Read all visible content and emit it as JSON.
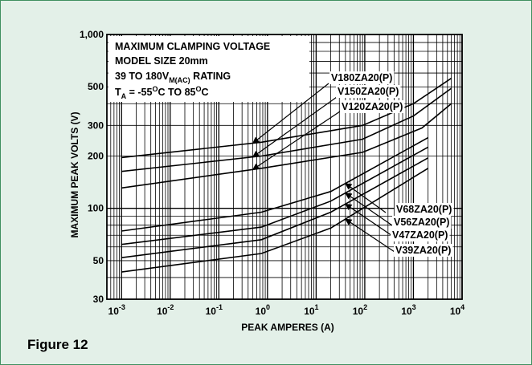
{
  "figure_caption": "Figure 12",
  "colors": {
    "background": "#e3f0e8",
    "border": "#3f8f5f",
    "ink": "#000000"
  },
  "chart_data": {
    "type": "line",
    "x_scale": "log",
    "y_scale": "log",
    "xlabel": "PEAK AMPERES (A)",
    "ylabel": "MAXIMUM PEAK VOLTS (V)",
    "xlim": [
      0.0005,
      10000
    ],
    "ylim": [
      30,
      1000
    ],
    "x_ticks": [
      {
        "value": 0.001,
        "base": "10",
        "exp": "-3"
      },
      {
        "value": 0.01,
        "base": "10",
        "exp": "-2"
      },
      {
        "value": 0.1,
        "base": "10",
        "exp": "-1"
      },
      {
        "value": 1,
        "base": "10",
        "exp": "0"
      },
      {
        "value": 10,
        "base": "10",
        "exp": "1"
      },
      {
        "value": 100,
        "base": "10",
        "exp": "2"
      },
      {
        "value": 1000,
        "base": "10",
        "exp": "3"
      },
      {
        "value": 10000,
        "base": "10",
        "exp": "4"
      }
    ],
    "y_ticks": [
      {
        "value": 30,
        "label": "30"
      },
      {
        "value": 50,
        "label": "50"
      },
      {
        "value": 100,
        "label": "100"
      },
      {
        "value": 200,
        "label": "200"
      },
      {
        "value": 300,
        "label": "300"
      },
      {
        "value": 500,
        "label": "500"
      },
      {
        "value": 1000,
        "label": "1,000"
      }
    ],
    "grid": true,
    "info_box": {
      "line1": "MAXIMUM CLAMPING VOLTAGE",
      "line2": "MODEL SIZE 20mm",
      "line3_prefix": "39 TO 180V",
      "line3_sub": "M(AC)",
      "line3_suffix": " RATING",
      "line4_T": "T",
      "line4_sub": "A",
      "line4_a": " = -55",
      "line4_o1": "O",
      "line4_b": "C TO 85",
      "line4_o2": "O",
      "line4_c": "C"
    },
    "series": [
      {
        "name": "V180ZA20(P)",
        "x": [
          0.001,
          0.75,
          90,
          1000,
          6000
        ],
        "y": [
          196,
          240,
          300,
          400,
          560
        ]
      },
      {
        "name": "V150ZA20(P)",
        "x": [
          0.001,
          0.75,
          90,
          1000,
          6000
        ],
        "y": [
          163,
          200,
          250,
          340,
          490
        ]
      },
      {
        "name": "V120ZA20(P)",
        "x": [
          0.001,
          0.75,
          90,
          1500,
          6000
        ],
        "y": [
          131,
          170,
          210,
          290,
          400
        ]
      },
      {
        "name": "V68ZA20(P)",
        "x": [
          0.001,
          0.75,
          20,
          2000
        ],
        "y": [
          74,
          95,
          125,
          255
        ]
      },
      {
        "name": "V56ZA20(P)",
        "x": [
          0.001,
          0.75,
          20,
          2000
        ],
        "y": [
          62,
          78,
          110,
          225
        ]
      },
      {
        "name": "V47ZA20(P)",
        "x": [
          0.001,
          0.75,
          20,
          2000
        ],
        "y": [
          52,
          66,
          95,
          195
        ]
      },
      {
        "name": "V39ZA20(P)",
        "x": [
          0.001,
          0.75,
          20,
          2000
        ],
        "y": [
          43,
          55,
          77,
          170
        ]
      }
    ],
    "annotations": [
      {
        "label": "V180ZA20(P)",
        "anchor_series": 0,
        "point_x": 0.5
      },
      {
        "label": "V150ZA20(P)",
        "anchor_series": 1,
        "point_x": 0.5
      },
      {
        "label": "V120ZA20(P)",
        "anchor_series": 2,
        "point_x": 0.5
      },
      {
        "label": "V68ZA20(P)",
        "anchor_series": 3,
        "point_x": 40
      },
      {
        "label": "V56ZA20(P)",
        "anchor_series": 4,
        "point_x": 40
      },
      {
        "label": "V47ZA20(P)",
        "anchor_series": 5,
        "point_x": 40
      },
      {
        "label": "V39ZA20(P)",
        "anchor_series": 6,
        "point_x": 40
      }
    ]
  }
}
